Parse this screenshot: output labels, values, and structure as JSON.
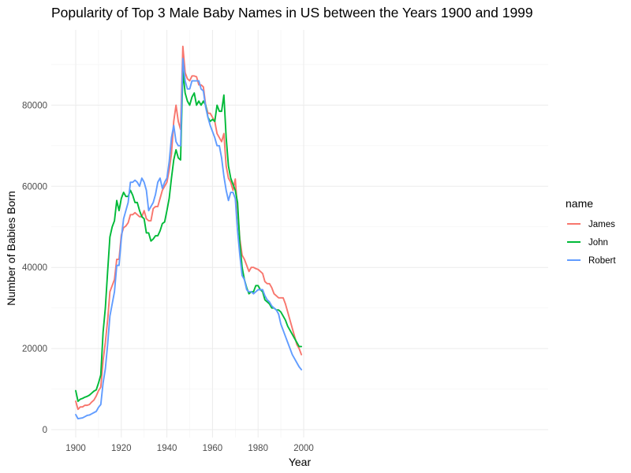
{
  "chart_data": {
    "type": "line",
    "title": "Popularity of Top 3 Male Baby Names in US between the Years 1900 and 1999",
    "xlabel": "Year",
    "ylabel": "Number of Babies Born",
    "xlim": [
      1900,
      1999
    ],
    "ylim": [
      0,
      95000
    ],
    "x_ticks": [
      1900,
      1920,
      1940,
      1960,
      1980,
      2000
    ],
    "y_ticks": [
      0,
      20000,
      40000,
      60000,
      80000
    ],
    "grid": true,
    "legend": {
      "title": "name",
      "position": "right"
    },
    "x": [
      1900,
      1901,
      1902,
      1903,
      1904,
      1905,
      1906,
      1907,
      1908,
      1909,
      1910,
      1911,
      1912,
      1913,
      1914,
      1915,
      1916,
      1917,
      1918,
      1919,
      1920,
      1921,
      1922,
      1923,
      1924,
      1925,
      1926,
      1927,
      1928,
      1929,
      1930,
      1931,
      1932,
      1933,
      1934,
      1935,
      1936,
      1937,
      1938,
      1939,
      1940,
      1941,
      1942,
      1943,
      1944,
      1945,
      1946,
      1947,
      1948,
      1949,
      1950,
      1951,
      1952,
      1953,
      1954,
      1955,
      1956,
      1957,
      1958,
      1959,
      1960,
      1961,
      1962,
      1963,
      1964,
      1965,
      1966,
      1967,
      1968,
      1969,
      1970,
      1971,
      1972,
      1973,
      1974,
      1975,
      1976,
      1977,
      1978,
      1979,
      1980,
      1981,
      1982,
      1983,
      1984,
      1985,
      1986,
      1987,
      1988,
      1989,
      1990,
      1991,
      1992,
      1993,
      1994,
      1995,
      1996,
      1997,
      1998,
      1999
    ],
    "series": [
      {
        "name": "James",
        "color": "#F8766D",
        "values": [
          7000,
          5000,
          5600,
          5600,
          6000,
          6000,
          6200,
          6800,
          7300,
          8300,
          9600,
          10500,
          17000,
          21500,
          27000,
          34000,
          35500,
          37000,
          42000,
          42000,
          48000,
          49800,
          50200,
          51000,
          53000,
          53000,
          53500,
          53000,
          52500,
          52500,
          54000,
          52000,
          51500,
          51500,
          54500,
          55000,
          55000,
          57000,
          59000,
          60000,
          61000,
          64000,
          68000,
          76000,
          80000,
          76000,
          74000,
          94500,
          88000,
          86500,
          86000,
          87200,
          87200,
          87000,
          85000,
          85000,
          84500,
          80000,
          78000,
          78000,
          77000,
          76000,
          73000,
          72000,
          71000,
          73000,
          65000,
          62000,
          61000,
          59000,
          61800,
          54000,
          47000,
          43000,
          42000,
          40500,
          39000,
          40000,
          40000,
          39700,
          39500,
          39000,
          38500,
          36500,
          36000,
          36000,
          35000,
          33500,
          33000,
          32500,
          32500,
          32500,
          31000,
          29000,
          27000,
          25000,
          23000,
          21000,
          20000,
          18500
        ]
      },
      {
        "name": "John",
        "color": "#00BA38",
        "values": [
          9600,
          7000,
          7500,
          7700,
          8000,
          8200,
          8500,
          9000,
          9500,
          9800,
          11500,
          13500,
          24000,
          30000,
          39000,
          47500,
          50000,
          51500,
          56500,
          54000,
          57000,
          58500,
          57500,
          57500,
          59000,
          57800,
          56000,
          56000,
          54000,
          52500,
          52000,
          48500,
          48500,
          46500,
          47000,
          47800,
          47800,
          49000,
          50800,
          51200,
          54000,
          57000,
          62000,
          66500,
          69000,
          67000,
          66500,
          88500,
          83000,
          81000,
          80000,
          82000,
          83000,
          80000,
          81000,
          80000,
          81000,
          80000,
          77000,
          76000,
          76500,
          76000,
          80000,
          78500,
          78500,
          82500,
          72000,
          65000,
          62000,
          60500,
          59000,
          56000,
          46000,
          40000,
          37000,
          35000,
          33500,
          34000,
          34000,
          35500,
          35500,
          34500,
          34000,
          32000,
          31500,
          31000,
          30000,
          30000,
          29500,
          29500,
          29000,
          28000,
          27000,
          25500,
          24500,
          23500,
          22500,
          21500,
          20500,
          20500
        ]
      },
      {
        "name": "Robert",
        "color": "#619CFF",
        "values": [
          3700,
          2700,
          2800,
          2900,
          3200,
          3500,
          3600,
          3900,
          4200,
          4500,
          5500,
          6200,
          11500,
          15000,
          21000,
          28000,
          31000,
          34000,
          40500,
          40500,
          47000,
          52000,
          54000,
          56000,
          61000,
          61000,
          61500,
          61000,
          60000,
          62000,
          61000,
          59000,
          54000,
          55000,
          56000,
          58000,
          61000,
          62000,
          59500,
          61000,
          62000,
          66000,
          72000,
          75000,
          71000,
          70000,
          70000,
          91500,
          86000,
          84000,
          84000,
          86000,
          86000,
          86000,
          86000,
          84000,
          83500,
          79500,
          77000,
          75000,
          73500,
          72000,
          70000,
          70000,
          67000,
          62500,
          59000,
          56500,
          58500,
          58500,
          57000,
          49000,
          43000,
          38000,
          37000,
          34500,
          34000,
          34000,
          33500,
          34000,
          34500,
          34500,
          34500,
          33000,
          32000,
          31500,
          30500,
          30000,
          29500,
          28500,
          26000,
          24500,
          23000,
          21500,
          20000,
          18500,
          17500,
          16500,
          15500,
          14800
        ]
      }
    ]
  }
}
